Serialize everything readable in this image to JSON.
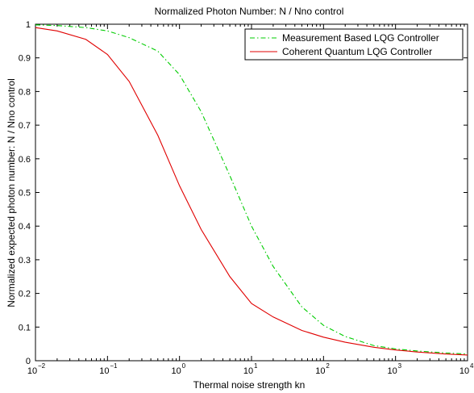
{
  "chart_data": {
    "type": "line",
    "title": "Normalized Photon Number: N / Nno control",
    "xlabel": "Thermal noise strength kn",
    "ylabel": "Normalized expected photon number: N / Nno control",
    "x_scale": "log",
    "xlim": [
      0.01,
      10000
    ],
    "ylim": [
      0,
      1
    ],
    "grid": false,
    "legend_position": "top-right",
    "x_ticks": [
      {
        "base": "10",
        "exp": "−2"
      },
      {
        "base": "10",
        "exp": "−1"
      },
      {
        "base": "10",
        "exp": "0"
      },
      {
        "base": "10",
        "exp": "1"
      },
      {
        "base": "10",
        "exp": "2"
      },
      {
        "base": "10",
        "exp": "3"
      },
      {
        "base": "10",
        "exp": "4"
      }
    ],
    "y_ticks": [
      "0",
      "0.1",
      "0.2",
      "0.3",
      "0.4",
      "0.5",
      "0.6",
      "0.7",
      "0.8",
      "0.9",
      "1"
    ],
    "series": [
      {
        "name": "Measurement Based LQG Controller",
        "color": "#00cc00",
        "dash": "dash-dot",
        "x": [
          0.01,
          0.02,
          0.05,
          0.1,
          0.2,
          0.5,
          1,
          2,
          5,
          10,
          20,
          50,
          100,
          200,
          500,
          1000,
          2000,
          5000,
          10000
        ],
        "y": [
          0.998,
          0.996,
          0.99,
          0.98,
          0.96,
          0.92,
          0.85,
          0.74,
          0.55,
          0.4,
          0.28,
          0.16,
          0.105,
          0.072,
          0.045,
          0.035,
          0.029,
          0.023,
          0.02
        ]
      },
      {
        "name": "Coherent Quantum LQG Controller",
        "color": "#e00000",
        "dash": "solid",
        "x": [
          0.01,
          0.02,
          0.05,
          0.1,
          0.2,
          0.5,
          1,
          2,
          5,
          10,
          20,
          50,
          100,
          200,
          500,
          1000,
          2000,
          5000,
          10000
        ],
        "y": [
          0.99,
          0.98,
          0.955,
          0.91,
          0.83,
          0.67,
          0.52,
          0.39,
          0.25,
          0.17,
          0.13,
          0.09,
          0.07,
          0.055,
          0.04,
          0.032,
          0.026,
          0.02,
          0.017
        ]
      }
    ]
  }
}
